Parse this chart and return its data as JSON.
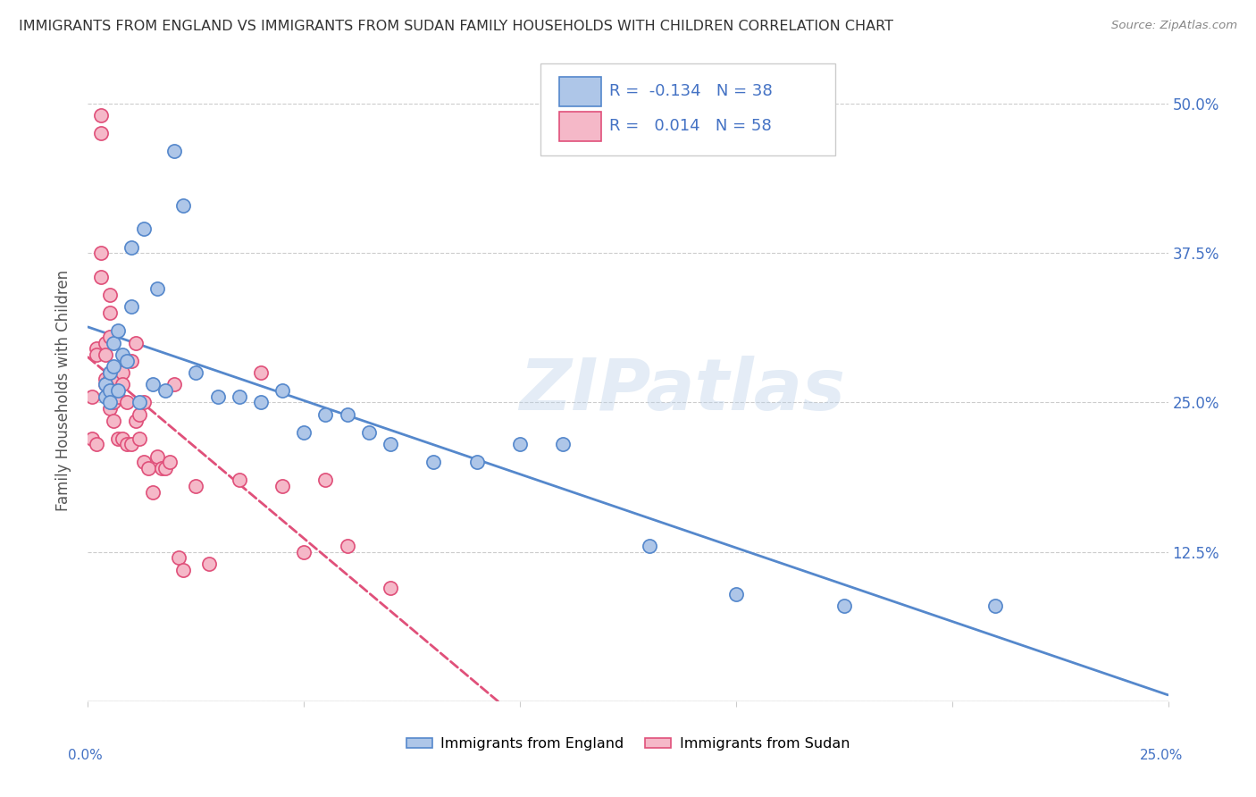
{
  "title": "IMMIGRANTS FROM ENGLAND VS IMMIGRANTS FROM SUDAN FAMILY HOUSEHOLDS WITH CHILDREN CORRELATION CHART",
  "source": "Source: ZipAtlas.com",
  "ylabel": "Family Households with Children",
  "ytick_labels": [
    "",
    "12.5%",
    "25.0%",
    "37.5%",
    "50.0%"
  ],
  "ytick_values": [
    0.0,
    0.125,
    0.25,
    0.375,
    0.5
  ],
  "xlim": [
    0.0,
    0.25
  ],
  "ylim": [
    0.0,
    0.52
  ],
  "legend_england": "Immigrants from England",
  "legend_sudan": "Immigrants from Sudan",
  "R_england": -0.134,
  "N_england": 38,
  "R_sudan": 0.014,
  "N_sudan": 58,
  "england_color": "#aec6e8",
  "sudan_color": "#f5b8c8",
  "england_line_color": "#5588cc",
  "sudan_line_color": "#e0507a",
  "watermark": "ZIPatlas",
  "england_x": [
    0.004,
    0.004,
    0.005,
    0.005,
    0.005,
    0.006,
    0.006,
    0.007,
    0.007,
    0.008,
    0.009,
    0.01,
    0.01,
    0.012,
    0.013,
    0.015,
    0.016,
    0.018,
    0.02,
    0.022,
    0.025,
    0.03,
    0.035,
    0.04,
    0.045,
    0.05,
    0.055,
    0.06,
    0.065,
    0.07,
    0.08,
    0.09,
    0.1,
    0.11,
    0.13,
    0.15,
    0.175,
    0.21
  ],
  "england_y": [
    0.265,
    0.255,
    0.275,
    0.26,
    0.25,
    0.3,
    0.28,
    0.31,
    0.26,
    0.29,
    0.285,
    0.33,
    0.38,
    0.25,
    0.395,
    0.265,
    0.345,
    0.26,
    0.46,
    0.415,
    0.275,
    0.255,
    0.255,
    0.25,
    0.26,
    0.225,
    0.24,
    0.24,
    0.225,
    0.215,
    0.2,
    0.2,
    0.215,
    0.215,
    0.13,
    0.09,
    0.08,
    0.08
  ],
  "sudan_x": [
    0.001,
    0.001,
    0.002,
    0.002,
    0.002,
    0.003,
    0.003,
    0.003,
    0.003,
    0.004,
    0.004,
    0.004,
    0.004,
    0.005,
    0.005,
    0.005,
    0.005,
    0.005,
    0.005,
    0.006,
    0.006,
    0.006,
    0.006,
    0.007,
    0.007,
    0.007,
    0.007,
    0.008,
    0.008,
    0.008,
    0.009,
    0.009,
    0.01,
    0.01,
    0.011,
    0.011,
    0.012,
    0.012,
    0.013,
    0.013,
    0.014,
    0.015,
    0.016,
    0.017,
    0.018,
    0.019,
    0.02,
    0.021,
    0.022,
    0.025,
    0.028,
    0.035,
    0.04,
    0.045,
    0.05,
    0.055,
    0.06,
    0.07
  ],
  "sudan_y": [
    0.255,
    0.22,
    0.295,
    0.29,
    0.215,
    0.49,
    0.475,
    0.375,
    0.355,
    0.3,
    0.29,
    0.27,
    0.265,
    0.34,
    0.325,
    0.305,
    0.275,
    0.27,
    0.245,
    0.275,
    0.27,
    0.25,
    0.235,
    0.275,
    0.27,
    0.255,
    0.22,
    0.275,
    0.265,
    0.22,
    0.25,
    0.215,
    0.285,
    0.215,
    0.3,
    0.235,
    0.24,
    0.22,
    0.25,
    0.2,
    0.195,
    0.175,
    0.205,
    0.195,
    0.195,
    0.2,
    0.265,
    0.12,
    0.11,
    0.18,
    0.115,
    0.185,
    0.275,
    0.18,
    0.125,
    0.185,
    0.13,
    0.095
  ]
}
